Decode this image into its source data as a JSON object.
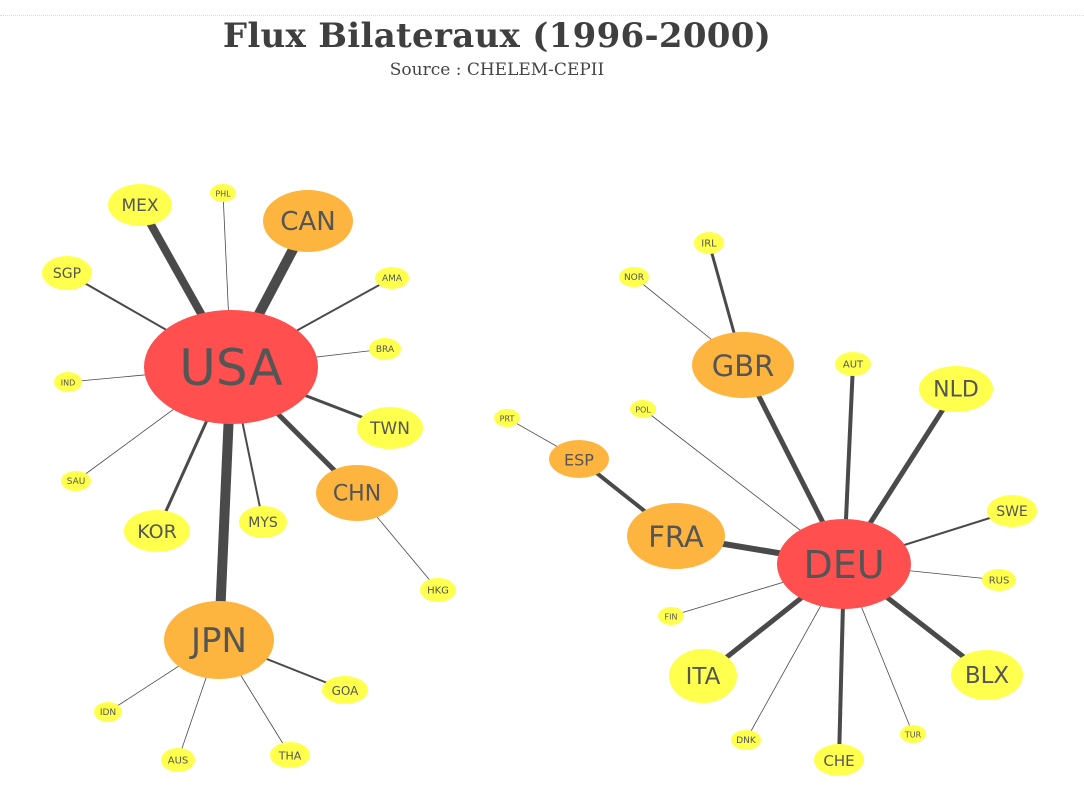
{
  "title": "Flux Bilateraux (1996-2000)",
  "subtitle": "Source : CHELEM-CEPII",
  "colors": {
    "tier1": "#ff4f4f",
    "tier2": "#fdb53f",
    "tier3": "#ffff4d",
    "edge": "#4a4a4a",
    "label": "#555555"
  },
  "nodes": [
    {
      "id": "USA",
      "label": "USA",
      "tier": 1
    },
    {
      "id": "JPN",
      "label": "JPN",
      "tier": 2
    },
    {
      "id": "CAN",
      "label": "CAN",
      "tier": 2
    },
    {
      "id": "CHN",
      "label": "CHN",
      "tier": 2
    },
    {
      "id": "MEX",
      "label": "MEX",
      "tier": 3
    },
    {
      "id": "PHL",
      "label": "PHL",
      "tier": 3
    },
    {
      "id": "SGP",
      "label": "SGP",
      "tier": 3
    },
    {
      "id": "AMA",
      "label": "AMA",
      "tier": 3
    },
    {
      "id": "BRA",
      "label": "BRA",
      "tier": 3
    },
    {
      "id": "IND",
      "label": "IND",
      "tier": 3
    },
    {
      "id": "TWN",
      "label": "TWN",
      "tier": 3
    },
    {
      "id": "SAU",
      "label": "SAU",
      "tier": 3
    },
    {
      "id": "KOR",
      "label": "KOR",
      "tier": 3
    },
    {
      "id": "MYS",
      "label": "MYS",
      "tier": 3
    },
    {
      "id": "HKG",
      "label": "HKG",
      "tier": 3
    },
    {
      "id": "IDN",
      "label": "IDN",
      "tier": 3
    },
    {
      "id": "GOA",
      "label": "GOA",
      "tier": 3
    },
    {
      "id": "AUS",
      "label": "AUS",
      "tier": 3
    },
    {
      "id": "THA",
      "label": "THA",
      "tier": 3
    },
    {
      "id": "DEU",
      "label": "DEU",
      "tier": 1
    },
    {
      "id": "GBR",
      "label": "GBR",
      "tier": 2
    },
    {
      "id": "FRA",
      "label": "FRA",
      "tier": 2
    },
    {
      "id": "ESP",
      "label": "ESP",
      "tier": 2
    },
    {
      "id": "IRL",
      "label": "IRL",
      "tier": 3
    },
    {
      "id": "NOR",
      "label": "NOR",
      "tier": 3
    },
    {
      "id": "AUT",
      "label": "AUT",
      "tier": 3
    },
    {
      "id": "NLD",
      "label": "NLD",
      "tier": 3
    },
    {
      "id": "PRT",
      "label": "PRT",
      "tier": 3
    },
    {
      "id": "POL",
      "label": "POL",
      "tier": 3
    },
    {
      "id": "SWE",
      "label": "SWE",
      "tier": 3
    },
    {
      "id": "RUS",
      "label": "RUS",
      "tier": 3
    },
    {
      "id": "FIN",
      "label": "FIN",
      "tier": 3
    },
    {
      "id": "ITA",
      "label": "ITA",
      "tier": 3
    },
    {
      "id": "BLX",
      "label": "BLX",
      "tier": 3
    },
    {
      "id": "DNK",
      "label": "DNK",
      "tier": 3
    },
    {
      "id": "CHE",
      "label": "CHE",
      "tier": 3
    },
    {
      "id": "TUR",
      "label": "TUR",
      "tier": 3
    }
  ],
  "edges": [
    {
      "source": "USA",
      "target": "JPN",
      "weight": 10
    },
    {
      "source": "USA",
      "target": "CAN",
      "weight": 10
    },
    {
      "source": "USA",
      "target": "MEX",
      "weight": 8
    },
    {
      "source": "USA",
      "target": "CHN",
      "weight": 5
    },
    {
      "source": "USA",
      "target": "KOR",
      "weight": 3
    },
    {
      "source": "USA",
      "target": "TWN",
      "weight": 3
    },
    {
      "source": "USA",
      "target": "AMA",
      "weight": 2
    },
    {
      "source": "USA",
      "target": "SGP",
      "weight": 2
    },
    {
      "source": "USA",
      "target": "MYS",
      "weight": 2
    },
    {
      "source": "USA",
      "target": "BRA",
      "weight": 1
    },
    {
      "source": "USA",
      "target": "IND",
      "weight": 1
    },
    {
      "source": "USA",
      "target": "SAU",
      "weight": 1
    },
    {
      "source": "USA",
      "target": "PHL",
      "weight": 1
    },
    {
      "source": "CHN",
      "target": "HKG",
      "weight": 1
    },
    {
      "source": "JPN",
      "target": "GOA",
      "weight": 2
    },
    {
      "source": "JPN",
      "target": "IDN",
      "weight": 1
    },
    {
      "source": "JPN",
      "target": "AUS",
      "weight": 1
    },
    {
      "source": "JPN",
      "target": "THA",
      "weight": 1
    },
    {
      "source": "DEU",
      "target": "FRA",
      "weight": 6
    },
    {
      "source": "DEU",
      "target": "GBR",
      "weight": 5
    },
    {
      "source": "DEU",
      "target": "NLD",
      "weight": 5
    },
    {
      "source": "DEU",
      "target": "ITA",
      "weight": 5
    },
    {
      "source": "DEU",
      "target": "BLX",
      "weight": 5
    },
    {
      "source": "DEU",
      "target": "CHE",
      "weight": 4
    },
    {
      "source": "DEU",
      "target": "AUT",
      "weight": 4
    },
    {
      "source": "DEU",
      "target": "SWE",
      "weight": 2
    },
    {
      "source": "DEU",
      "target": "RUS",
      "weight": 1
    },
    {
      "source": "DEU",
      "target": "POL",
      "weight": 1
    },
    {
      "source": "DEU",
      "target": "FIN",
      "weight": 1
    },
    {
      "source": "DEU",
      "target": "DNK",
      "weight": 1
    },
    {
      "source": "DEU",
      "target": "TUR",
      "weight": 1
    },
    {
      "source": "GBR",
      "target": "IRL",
      "weight": 3
    },
    {
      "source": "GBR",
      "target": "NOR",
      "weight": 1
    },
    {
      "source": "FRA",
      "target": "ESP",
      "weight": 4
    },
    {
      "source": "ESP",
      "target": "PRT",
      "weight": 1
    }
  ]
}
